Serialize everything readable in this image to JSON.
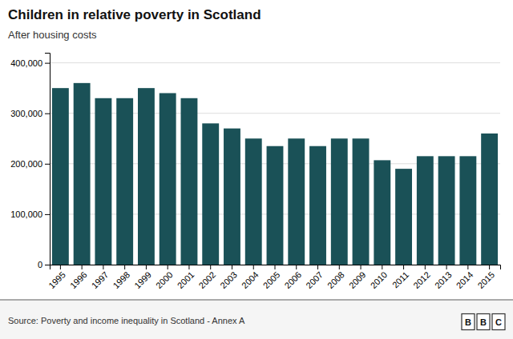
{
  "chart_data": {
    "type": "bar",
    "title": "Children in relative poverty in Scotland",
    "subtitle": "After housing costs",
    "source": "Source: Poverty and income inequality in Scotland - Annex A",
    "logo": [
      "B",
      "B",
      "C"
    ],
    "categories": [
      "1995",
      "1996",
      "1997",
      "1998",
      "1999",
      "2000",
      "2001",
      "2002",
      "2003",
      "2004",
      "2005",
      "2006",
      "2007",
      "2008",
      "2009",
      "2010",
      "2011",
      "2012",
      "2013",
      "2014",
      "2015"
    ],
    "values": [
      350000,
      360000,
      330000,
      330000,
      350000,
      340000,
      330000,
      280000,
      270000,
      250000,
      235000,
      250000,
      235000,
      250000,
      250000,
      207000,
      190000,
      215000,
      215000,
      215000,
      260000
    ],
    "color": "#1a5157",
    "ylim": [
      0,
      420000
    ],
    "yticks": [
      0,
      {
        "value": 100000,
        "label": "100,000"
      },
      {
        "value": 200000,
        "label": "200,000"
      },
      {
        "value": 300000,
        "label": "300,000"
      },
      {
        "value": 400000,
        "label": "400,000"
      }
    ],
    "grid": true
  }
}
